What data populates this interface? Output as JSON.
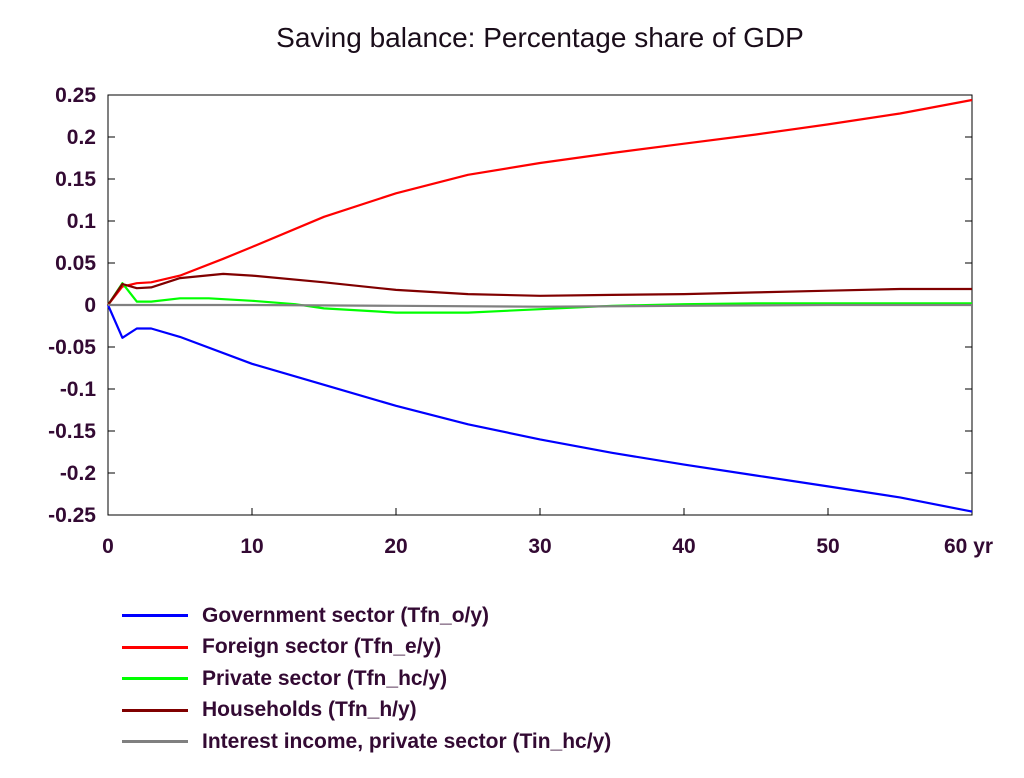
{
  "chart_data": {
    "type": "line",
    "title": "Saving balance: Percentage share of GDP",
    "xlabel": "",
    "ylabel": "",
    "x_unit_label": "yr",
    "xlim": [
      0,
      60
    ],
    "ylim": [
      -0.25,
      0.25
    ],
    "x_ticks": [
      0,
      10,
      20,
      30,
      40,
      50,
      60
    ],
    "x_tick_labels": [
      "0",
      "10",
      "20",
      "30",
      "40",
      "50",
      "60 yr"
    ],
    "y_ticks": [
      0.25,
      0.2,
      0.15,
      0.1,
      0.05,
      0,
      -0.05,
      -0.1,
      -0.15,
      -0.2,
      -0.25
    ],
    "y_tick_labels": [
      "0.25",
      "0.2",
      "0.15",
      "0.1",
      "0.05",
      "0",
      "-0.05",
      "-0.1",
      "-0.15",
      "-0.2",
      "-0.25"
    ],
    "grid": false,
    "legend_position": "bottom-left",
    "series": [
      {
        "name": "Government sector (Tfn_o/y)",
        "color": "#0000ff",
        "points": [
          [
            0,
            0
          ],
          [
            1,
            -0.039
          ],
          [
            2,
            -0.028
          ],
          [
            3,
            -0.028
          ],
          [
            5,
            -0.038
          ],
          [
            10,
            -0.07
          ],
          [
            15,
            -0.095
          ],
          [
            20,
            -0.12
          ],
          [
            25,
            -0.142
          ],
          [
            30,
            -0.16
          ],
          [
            35,
            -0.176
          ],
          [
            40,
            -0.19
          ],
          [
            45,
            -0.203
          ],
          [
            50,
            -0.216
          ],
          [
            55,
            -0.229
          ],
          [
            60,
            -0.246
          ]
        ]
      },
      {
        "name": "Foreign sector (Tfn_e/y)",
        "color": "#ff0000",
        "points": [
          [
            0,
            0
          ],
          [
            1,
            0.022
          ],
          [
            2,
            0.026
          ],
          [
            3,
            0.027
          ],
          [
            5,
            0.035
          ],
          [
            8,
            0.055
          ],
          [
            10,
            0.069
          ],
          [
            15,
            0.105
          ],
          [
            20,
            0.133
          ],
          [
            25,
            0.155
          ],
          [
            30,
            0.169
          ],
          [
            35,
            0.181
          ],
          [
            40,
            0.192
          ],
          [
            45,
            0.203
          ],
          [
            50,
            0.215
          ],
          [
            55,
            0.228
          ],
          [
            60,
            0.244
          ]
        ]
      },
      {
        "name": "Private sector (Tfn_hc/y)",
        "color": "#00ff00",
        "points": [
          [
            0,
            0
          ],
          [
            1,
            0.026
          ],
          [
            2,
            0.004
          ],
          [
            3,
            0.004
          ],
          [
            5,
            0.008
          ],
          [
            7,
            0.008
          ],
          [
            10,
            0.005
          ],
          [
            13,
            0.001
          ],
          [
            15,
            -0.004
          ],
          [
            20,
            -0.009
          ],
          [
            25,
            -0.009
          ],
          [
            30,
            -0.005
          ],
          [
            35,
            -0.001
          ],
          [
            40,
            0.001
          ],
          [
            45,
            0.002
          ],
          [
            50,
            0.002
          ],
          [
            55,
            0.002
          ],
          [
            60,
            0.002
          ]
        ]
      },
      {
        "name": "Households (Tfn_h/y)",
        "color": "#800000",
        "points": [
          [
            0,
            0
          ],
          [
            1,
            0.025
          ],
          [
            2,
            0.02
          ],
          [
            3,
            0.021
          ],
          [
            5,
            0.032
          ],
          [
            8,
            0.037
          ],
          [
            10,
            0.035
          ],
          [
            15,
            0.027
          ],
          [
            20,
            0.018
          ],
          [
            25,
            0.013
          ],
          [
            30,
            0.011
          ],
          [
            35,
            0.012
          ],
          [
            40,
            0.013
          ],
          [
            45,
            0.015
          ],
          [
            50,
            0.017
          ],
          [
            55,
            0.019
          ],
          [
            60,
            0.019
          ]
        ]
      },
      {
        "name": "Interest income, private sector (Tin_hc/y)",
        "color": "#808080",
        "points": [
          [
            0,
            0
          ],
          [
            10,
            0.0
          ],
          [
            20,
            -0.001
          ],
          [
            30,
            -0.002
          ],
          [
            40,
            -0.001
          ],
          [
            50,
            0.0
          ],
          [
            60,
            0.0
          ]
        ]
      }
    ]
  }
}
